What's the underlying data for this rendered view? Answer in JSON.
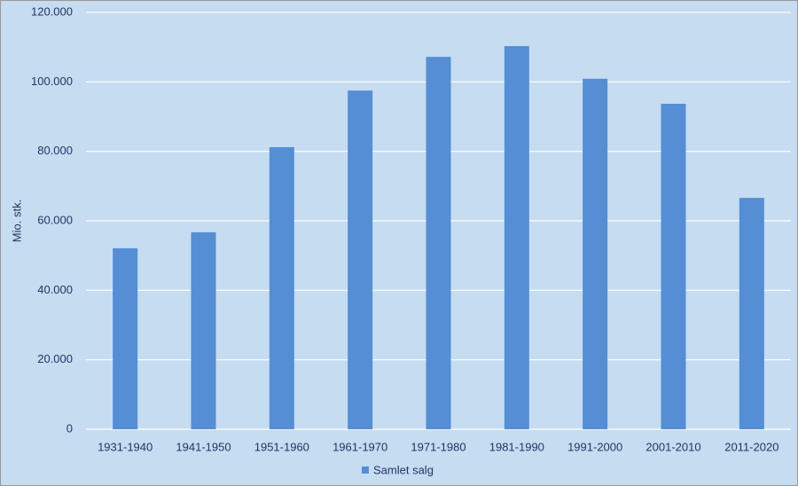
{
  "chart_data": {
    "type": "bar",
    "y_label": "Mio. stk.",
    "categories": [
      "1931-1940",
      "1941-1950",
      "1951-1960",
      "1961-1970",
      "1971-1980",
      "1981-1990",
      "1991-2000",
      "2001-2010",
      "2011-2020"
    ],
    "series": [
      {
        "name": "Samlet salg",
        "color": "#558ed5",
        "values": [
          52100,
          56700,
          81200,
          97500,
          107200,
          110300,
          100900,
          93700,
          66600
        ]
      }
    ],
    "ylim": [
      0,
      120000
    ],
    "yticks": [
      0,
      {
        "value": 20000,
        "label": "20.000"
      },
      {
        "value": 40000,
        "label": "40.000"
      },
      {
        "value": 60000,
        "label": "60.000"
      },
      {
        "value": 80000,
        "label": "80.000"
      },
      {
        "value": 100000,
        "label": "100.000"
      },
      {
        "value": 120000,
        "label": "120.000"
      }
    ],
    "grid": true,
    "legend": "bottom"
  }
}
